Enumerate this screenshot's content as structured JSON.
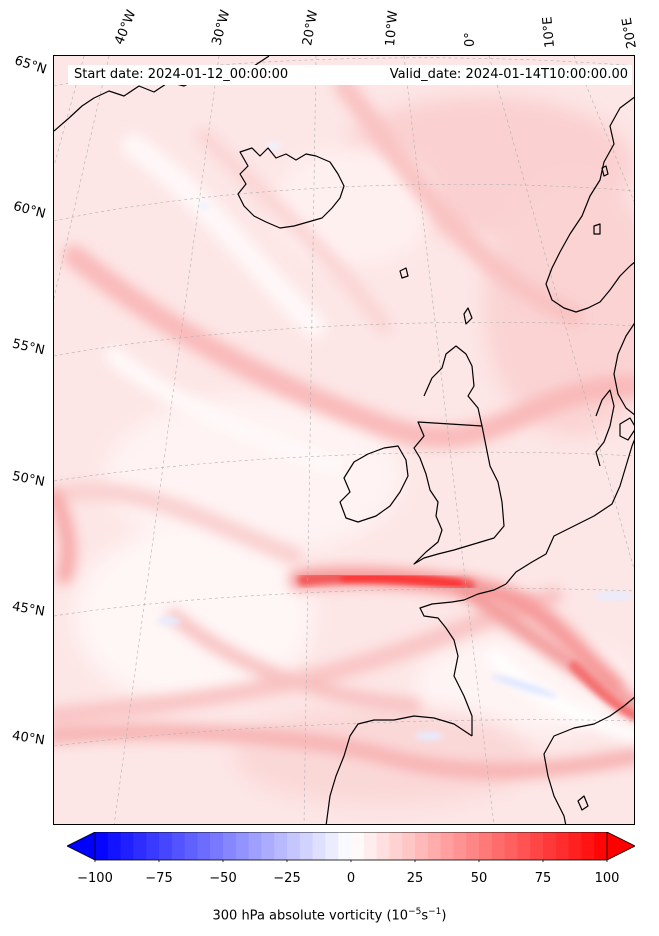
{
  "header": {
    "start_date": "Start date: 2024-01-12_00:00:00",
    "valid_date": "Valid_date: 2024-01-14T10:00:00.00"
  },
  "lon_labels": [
    "40°W",
    "30°W",
    "20°W",
    "10°W",
    "0°",
    "10°E",
    "20°E"
  ],
  "lat_labels": [
    "65°N",
    "60°N",
    "55°N",
    "50°N",
    "45°N",
    "40°N"
  ],
  "colorbar": {
    "ticks": [
      "−100",
      "−75",
      "−50",
      "−25",
      "0",
      "25",
      "50",
      "75",
      "100"
    ],
    "label_text": "300 hPa absolute vorticity (10",
    "label_exp1": "−5",
    "label_mid": "s",
    "label_exp2": "−1",
    "label_close": ")",
    "min": -100,
    "max": 100,
    "low_color": "#0000ff",
    "high_color": "#ff0000"
  },
  "map_data": {
    "field": "300 hPa absolute vorticity",
    "units": "1e-5 s-1",
    "region": "North Atlantic / Western Europe",
    "features": [
      "strong positive vorticity band near 46°N extending from 20°W to France",
      "positive band over Iberia toward 10°E",
      "coastlines of Iceland, British Isles, Scandinavia, France, Iberia"
    ]
  }
}
